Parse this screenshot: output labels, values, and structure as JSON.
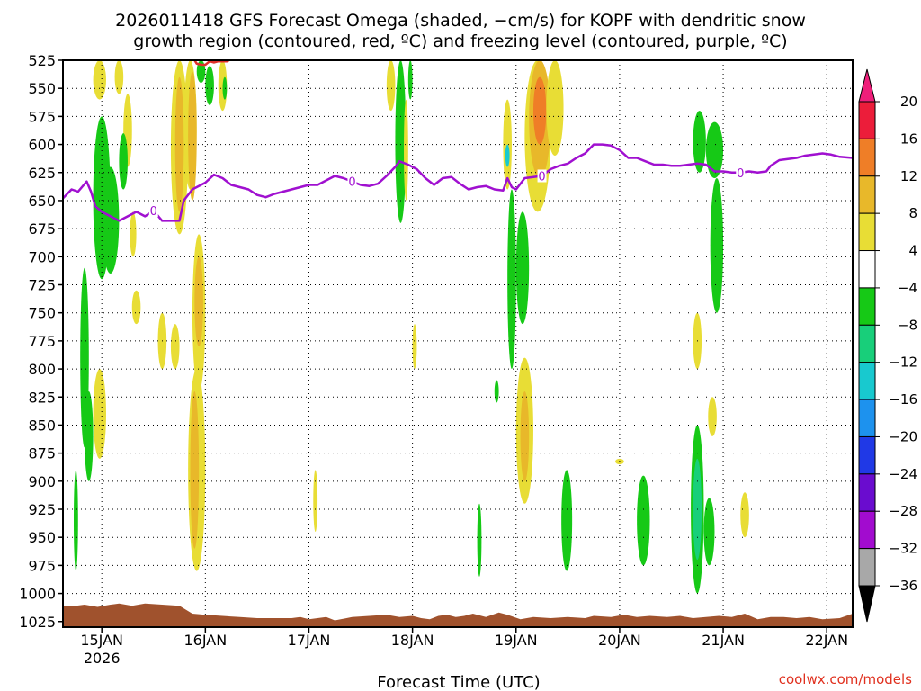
{
  "chart_data": {
    "type": "heatmap",
    "title": [
      "2026011418 GFS Forecast Omega (shaded, −cm/s) for KOPF with dendritic snow",
      "growth region (contoured, red, ºC) and freezing level (contoured, purple, ºC)"
    ],
    "xlabel": "Forecast Time (UTC)",
    "credit": "coolwx.com/models",
    "x_axis": {
      "range_hours": [
        -3,
        180
      ],
      "ticks": [
        {
          "hour": 6,
          "label": "15JAN",
          "sub": "2026"
        },
        {
          "hour": 30,
          "label": "16JAN",
          "sub": ""
        },
        {
          "hour": 54,
          "label": "17JAN",
          "sub": ""
        },
        {
          "hour": 78,
          "label": "18JAN",
          "sub": ""
        },
        {
          "hour": 102,
          "label": "19JAN",
          "sub": ""
        },
        {
          "hour": 126,
          "label": "20JAN",
          "sub": ""
        },
        {
          "hour": 150,
          "label": "21JAN",
          "sub": ""
        },
        {
          "hour": 174,
          "label": "22JAN",
          "sub": ""
        }
      ]
    },
    "y_axis": {
      "range_hpa": [
        525,
        1030
      ],
      "ticks": [
        525,
        550,
        575,
        600,
        625,
        650,
        675,
        700,
        725,
        750,
        775,
        800,
        825,
        850,
        875,
        900,
        925,
        950,
        975,
        1000,
        1025
      ]
    },
    "grid": true,
    "colorbar": {
      "labels": [
        "20",
        "16",
        "12",
        "8",
        "4",
        "−4",
        "−8",
        "−12",
        "−16",
        "−20",
        "−24",
        "−28",
        "−32",
        "−36"
      ],
      "colors": [
        "#ec1d3a",
        "#ef7e27",
        "#e8b82a",
        "#e8dd35",
        "#ffffff",
        "#16c916",
        "#18cf7a",
        "#18c9cf",
        "#1d92ee",
        "#2039e6",
        "#6a0ccf",
        "#a20ccf",
        "#a8a8a8"
      ],
      "top_arrow_color": "#ee1f7a",
      "bottom_arrow_color": "#000000"
    },
    "freezing_level": {
      "color": "#a010d0",
      "label": "0",
      "points": [
        [
          -3,
          648
        ],
        [
          -1,
          640
        ],
        [
          0.5,
          642
        ],
        [
          2.5,
          633
        ],
        [
          3.5,
          642
        ],
        [
          4.5,
          655
        ],
        [
          6,
          660
        ],
        [
          8,
          664
        ],
        [
          10,
          668
        ],
        [
          12,
          664
        ],
        [
          14,
          660
        ],
        [
          16,
          664
        ],
        [
          18,
          659
        ],
        [
          20,
          668
        ],
        [
          24,
          668
        ],
        [
          25,
          650
        ],
        [
          27,
          640
        ],
        [
          30,
          634
        ],
        [
          32,
          627
        ],
        [
          34,
          630
        ],
        [
          36,
          636
        ],
        [
          38,
          638
        ],
        [
          40,
          640
        ],
        [
          42,
          645
        ],
        [
          44,
          647
        ],
        [
          46,
          644
        ],
        [
          48,
          642
        ],
        [
          50,
          640
        ],
        [
          52,
          638
        ],
        [
          54,
          636
        ],
        [
          56,
          636
        ],
        [
          58,
          632
        ],
        [
          60,
          628
        ],
        [
          62,
          630
        ],
        [
          64,
          633
        ],
        [
          66,
          636
        ],
        [
          68,
          637
        ],
        [
          70,
          635
        ],
        [
          72,
          628
        ],
        [
          74,
          620
        ],
        [
          75,
          615
        ],
        [
          77,
          618
        ],
        [
          79,
          622
        ],
        [
          81,
          630
        ],
        [
          83,
          636
        ],
        [
          85,
          630
        ],
        [
          87,
          629
        ],
        [
          89,
          635
        ],
        [
          91,
          640
        ],
        [
          93,
          638
        ],
        [
          95,
          637
        ],
        [
          97,
          640
        ],
        [
          99,
          641
        ],
        [
          100,
          630
        ],
        [
          101,
          638
        ],
        [
          102,
          640
        ],
        [
          104,
          630
        ],
        [
          106,
          629
        ],
        [
          108,
          628
        ],
        [
          110,
          622
        ],
        [
          112,
          619
        ],
        [
          114,
          617
        ],
        [
          116,
          612
        ],
        [
          118,
          608
        ],
        [
          120,
          600
        ],
        [
          122,
          600
        ],
        [
          124,
          601
        ],
        [
          126,
          605
        ],
        [
          128,
          612
        ],
        [
          130,
          612
        ],
        [
          132,
          615
        ],
        [
          134,
          618
        ],
        [
          136,
          618
        ],
        [
          138,
          619
        ],
        [
          140,
          619
        ],
        [
          142,
          618
        ],
        [
          144,
          617
        ],
        [
          146,
          618
        ],
        [
          148,
          624
        ],
        [
          150,
          624
        ],
        [
          152,
          625
        ],
        [
          154,
          625
        ],
        [
          156,
          624
        ],
        [
          158,
          625
        ],
        [
          160,
          624
        ],
        [
          161,
          619
        ],
        [
          163,
          614
        ],
        [
          165,
          613
        ],
        [
          167,
          612
        ],
        [
          169,
          610
        ],
        [
          171,
          609
        ],
        [
          173,
          608
        ],
        [
          175,
          609
        ],
        [
          177,
          611
        ],
        [
          180,
          612
        ]
      ]
    },
    "dendritic_contour": {
      "color": "#e0302a",
      "points": [
        [
          27.5,
          525
        ],
        [
          28,
          528
        ],
        [
          29,
          529
        ],
        [
          30,
          529
        ],
        [
          31,
          526
        ],
        [
          32,
          527
        ],
        [
          33,
          526
        ],
        [
          34,
          526
        ],
        [
          35,
          526
        ],
        [
          35.5,
          525
        ]
      ]
    },
    "omega_fields": [
      {
        "x": [
          4,
          7
        ],
        "p": [
          525,
          560
        ],
        "color": "#e8dd35"
      },
      {
        "x": [
          9,
          11
        ],
        "p": [
          525,
          555
        ],
        "color": "#e8dd35"
      },
      {
        "x": [
          11,
          13
        ],
        "p": [
          555,
          620
        ],
        "color": "#e8dd35"
      },
      {
        "x": [
          4,
          8
        ],
        "p": [
          575,
          720
        ],
        "color": "#16c916"
      },
      {
        "x": [
          6,
          10
        ],
        "p": [
          620,
          715
        ],
        "color": "#16c916"
      },
      {
        "x": [
          10,
          12
        ],
        "p": [
          590,
          640
        ],
        "color": "#16c916"
      },
      {
        "x": [
          1,
          3
        ],
        "p": [
          710,
          870
        ],
        "color": "#16c916"
      },
      {
        "x": [
          2,
          4
        ],
        "p": [
          820,
          900
        ],
        "color": "#16c916"
      },
      {
        "x": [
          -0.5,
          0.5
        ],
        "p": [
          890,
          980
        ],
        "color": "#16c916"
      },
      {
        "x": [
          4,
          7
        ],
        "p": [
          800,
          880
        ],
        "color": "#e8dd35"
      },
      {
        "x": [
          12.5,
          14
        ],
        "p": [
          660,
          700
        ],
        "color": "#e8dd35"
      },
      {
        "x": [
          13,
          15
        ],
        "p": [
          730,
          760
        ],
        "color": "#e8dd35"
      },
      {
        "x": [
          19,
          21
        ],
        "p": [
          750,
          800
        ],
        "color": "#e8dd35"
      },
      {
        "x": [
          22,
          24
        ],
        "p": [
          760,
          800
        ],
        "color": "#e8dd35"
      },
      {
        "x": [
          22,
          26
        ],
        "p": [
          525,
          680
        ],
        "color": "#e8dd35"
      },
      {
        "x": [
          23,
          25
        ],
        "p": [
          540,
          660
        ],
        "color": "#e8b82a"
      },
      {
        "x": [
          25,
          28
        ],
        "p": [
          525,
          640
        ],
        "color": "#e8dd35"
      },
      {
        "x": [
          26,
          28
        ],
        "p": [
          535,
          650
        ],
        "color": "#e8b82a"
      },
      {
        "x": [
          26,
          30
        ],
        "p": [
          800,
          980
        ],
        "color": "#e8dd35"
      },
      {
        "x": [
          26.5,
          28.5
        ],
        "p": [
          820,
          960
        ],
        "color": "#e8b82a"
      },
      {
        "x": [
          27,
          30
        ],
        "p": [
          680,
          820
        ],
        "color": "#e8dd35"
      },
      {
        "x": [
          27.5,
          29.5
        ],
        "p": [
          700,
          780
        ],
        "color": "#e8b82a"
      },
      {
        "x": [
          28,
          30
        ],
        "p": [
          525,
          545
        ],
        "color": "#16c916"
      },
      {
        "x": [
          30,
          32
        ],
        "p": [
          530,
          565
        ],
        "color": "#16c916"
      },
      {
        "x": [
          33,
          35
        ],
        "p": [
          525,
          570
        ],
        "color": "#e8dd35"
      },
      {
        "x": [
          34,
          35
        ],
        "p": [
          540,
          560
        ],
        "color": "#16c916"
      },
      {
        "x": [
          55,
          56
        ],
        "p": [
          890,
          945
        ],
        "color": "#e8dd35"
      },
      {
        "x": [
          72,
          74
        ],
        "p": [
          525,
          570
        ],
        "color": "#e8dd35"
      },
      {
        "x": [
          74,
          76.5
        ],
        "p": [
          525,
          670
        ],
        "color": "#16c916"
      },
      {
        "x": [
          76,
          77
        ],
        "p": [
          560,
          650
        ],
        "color": "#e8dd35"
      },
      {
        "x": [
          77,
          78
        ],
        "p": [
          525,
          560
        ],
        "color": "#16c916"
      },
      {
        "x": [
          78,
          79
        ],
        "p": [
          760,
          800
        ],
        "color": "#e8dd35"
      },
      {
        "x": [
          93,
          94
        ],
        "p": [
          920,
          985
        ],
        "color": "#16c916"
      },
      {
        "x": [
          97,
          98
        ],
        "p": [
          810,
          830
        ],
        "color": "#16c916"
      },
      {
        "x": [
          99,
          101
        ],
        "p": [
          560,
          640
        ],
        "color": "#e8dd35"
      },
      {
        "x": [
          99.5,
          100.5
        ],
        "p": [
          600,
          620
        ],
        "color": "#18c9cf"
      },
      {
        "x": [
          100,
          102
        ],
        "p": [
          640,
          800
        ],
        "color": "#16c916"
      },
      {
        "x": [
          102,
          105
        ],
        "p": [
          660,
          760
        ],
        "color": "#16c916"
      },
      {
        "x": [
          102,
          106
        ],
        "p": [
          790,
          920
        ],
        "color": "#e8dd35"
      },
      {
        "x": [
          103,
          105
        ],
        "p": [
          820,
          900
        ],
        "color": "#e8b82a"
      },
      {
        "x": [
          104,
          110
        ],
        "p": [
          525,
          660
        ],
        "color": "#e8dd35"
      },
      {
        "x": [
          105,
          110
        ],
        "p": [
          525,
          630
        ],
        "color": "#e8b82a"
      },
      {
        "x": [
          106,
          109
        ],
        "p": [
          540,
          600
        ],
        "color": "#ef7e27"
      },
      {
        "x": [
          109,
          113
        ],
        "p": [
          525,
          610
        ],
        "color": "#e8dd35"
      },
      {
        "x": [
          112.5,
          115
        ],
        "p": [
          890,
          980
        ],
        "color": "#16c916"
      },
      {
        "x": [
          125,
          127
        ],
        "p": [
          880,
          885
        ],
        "color": "#e8dd35"
      },
      {
        "x": [
          143,
          146
        ],
        "p": [
          570,
          625
        ],
        "color": "#16c916"
      },
      {
        "x": [
          146,
          150
        ],
        "p": [
          580,
          630
        ],
        "color": "#16c916"
      },
      {
        "x": [
          147,
          150
        ],
        "p": [
          630,
          750
        ],
        "color": "#16c916"
      },
      {
        "x": [
          143,
          145
        ],
        "p": [
          750,
          800
        ],
        "color": "#e8dd35"
      },
      {
        "x": [
          146.5,
          148.5
        ],
        "p": [
          825,
          860
        ],
        "color": "#e8dd35"
      },
      {
        "x": [
          142.5,
          145.5
        ],
        "p": [
          850,
          1000
        ],
        "color": "#16c916"
      },
      {
        "x": [
          143,
          145
        ],
        "p": [
          880,
          970
        ],
        "color": "#18cf7a"
      },
      {
        "x": [
          145.5,
          148
        ],
        "p": [
          915,
          975
        ],
        "color": "#16c916"
      },
      {
        "x": [
          154,
          156
        ],
        "p": [
          910,
          950
        ],
        "color": "#e8dd35"
      },
      {
        "x": [
          130,
          133
        ],
        "p": [
          895,
          975
        ],
        "color": "#16c916"
      }
    ],
    "terrain": {
      "color": "#a0522d",
      "points": [
        [
          -3,
          1011
        ],
        [
          0,
          1011
        ],
        [
          2,
          1010
        ],
        [
          5,
          1012
        ],
        [
          8,
          1010
        ],
        [
          10,
          1009
        ],
        [
          13,
          1011
        ],
        [
          16,
          1009
        ],
        [
          20,
          1010
        ],
        [
          24,
          1011
        ],
        [
          27,
          1018
        ],
        [
          30,
          1019
        ],
        [
          34,
          1020
        ],
        [
          38,
          1021
        ],
        [
          42,
          1022
        ],
        [
          46,
          1022
        ],
        [
          50,
          1022
        ],
        [
          52,
          1021
        ],
        [
          54,
          1023
        ],
        [
          58,
          1021
        ],
        [
          60,
          1024
        ],
        [
          64,
          1021
        ],
        [
          68,
          1020
        ],
        [
          72,
          1019
        ],
        [
          75,
          1021
        ],
        [
          78,
          1020
        ],
        [
          80,
          1022
        ],
        [
          82,
          1023
        ],
        [
          84,
          1020
        ],
        [
          86,
          1019
        ],
        [
          88,
          1021
        ],
        [
          90,
          1020
        ],
        [
          92,
          1018
        ],
        [
          95,
          1021
        ],
        [
          98,
          1017
        ],
        [
          100,
          1019
        ],
        [
          103,
          1023
        ],
        [
          106,
          1021
        ],
        [
          110,
          1022
        ],
        [
          114,
          1021
        ],
        [
          118,
          1022
        ],
        [
          120,
          1020
        ],
        [
          124,
          1021
        ],
        [
          127,
          1019
        ],
        [
          130,
          1021
        ],
        [
          133,
          1020
        ],
        [
          137,
          1021
        ],
        [
          140,
          1020
        ],
        [
          143,
          1022
        ],
        [
          146,
          1021
        ],
        [
          149,
          1020
        ],
        [
          152,
          1021
        ],
        [
          155,
          1018
        ],
        [
          158,
          1023
        ],
        [
          161,
          1021
        ],
        [
          164,
          1021
        ],
        [
          167,
          1022
        ],
        [
          170,
          1021
        ],
        [
          173,
          1023
        ],
        [
          177,
          1022
        ],
        [
          180,
          1018
        ]
      ]
    }
  }
}
